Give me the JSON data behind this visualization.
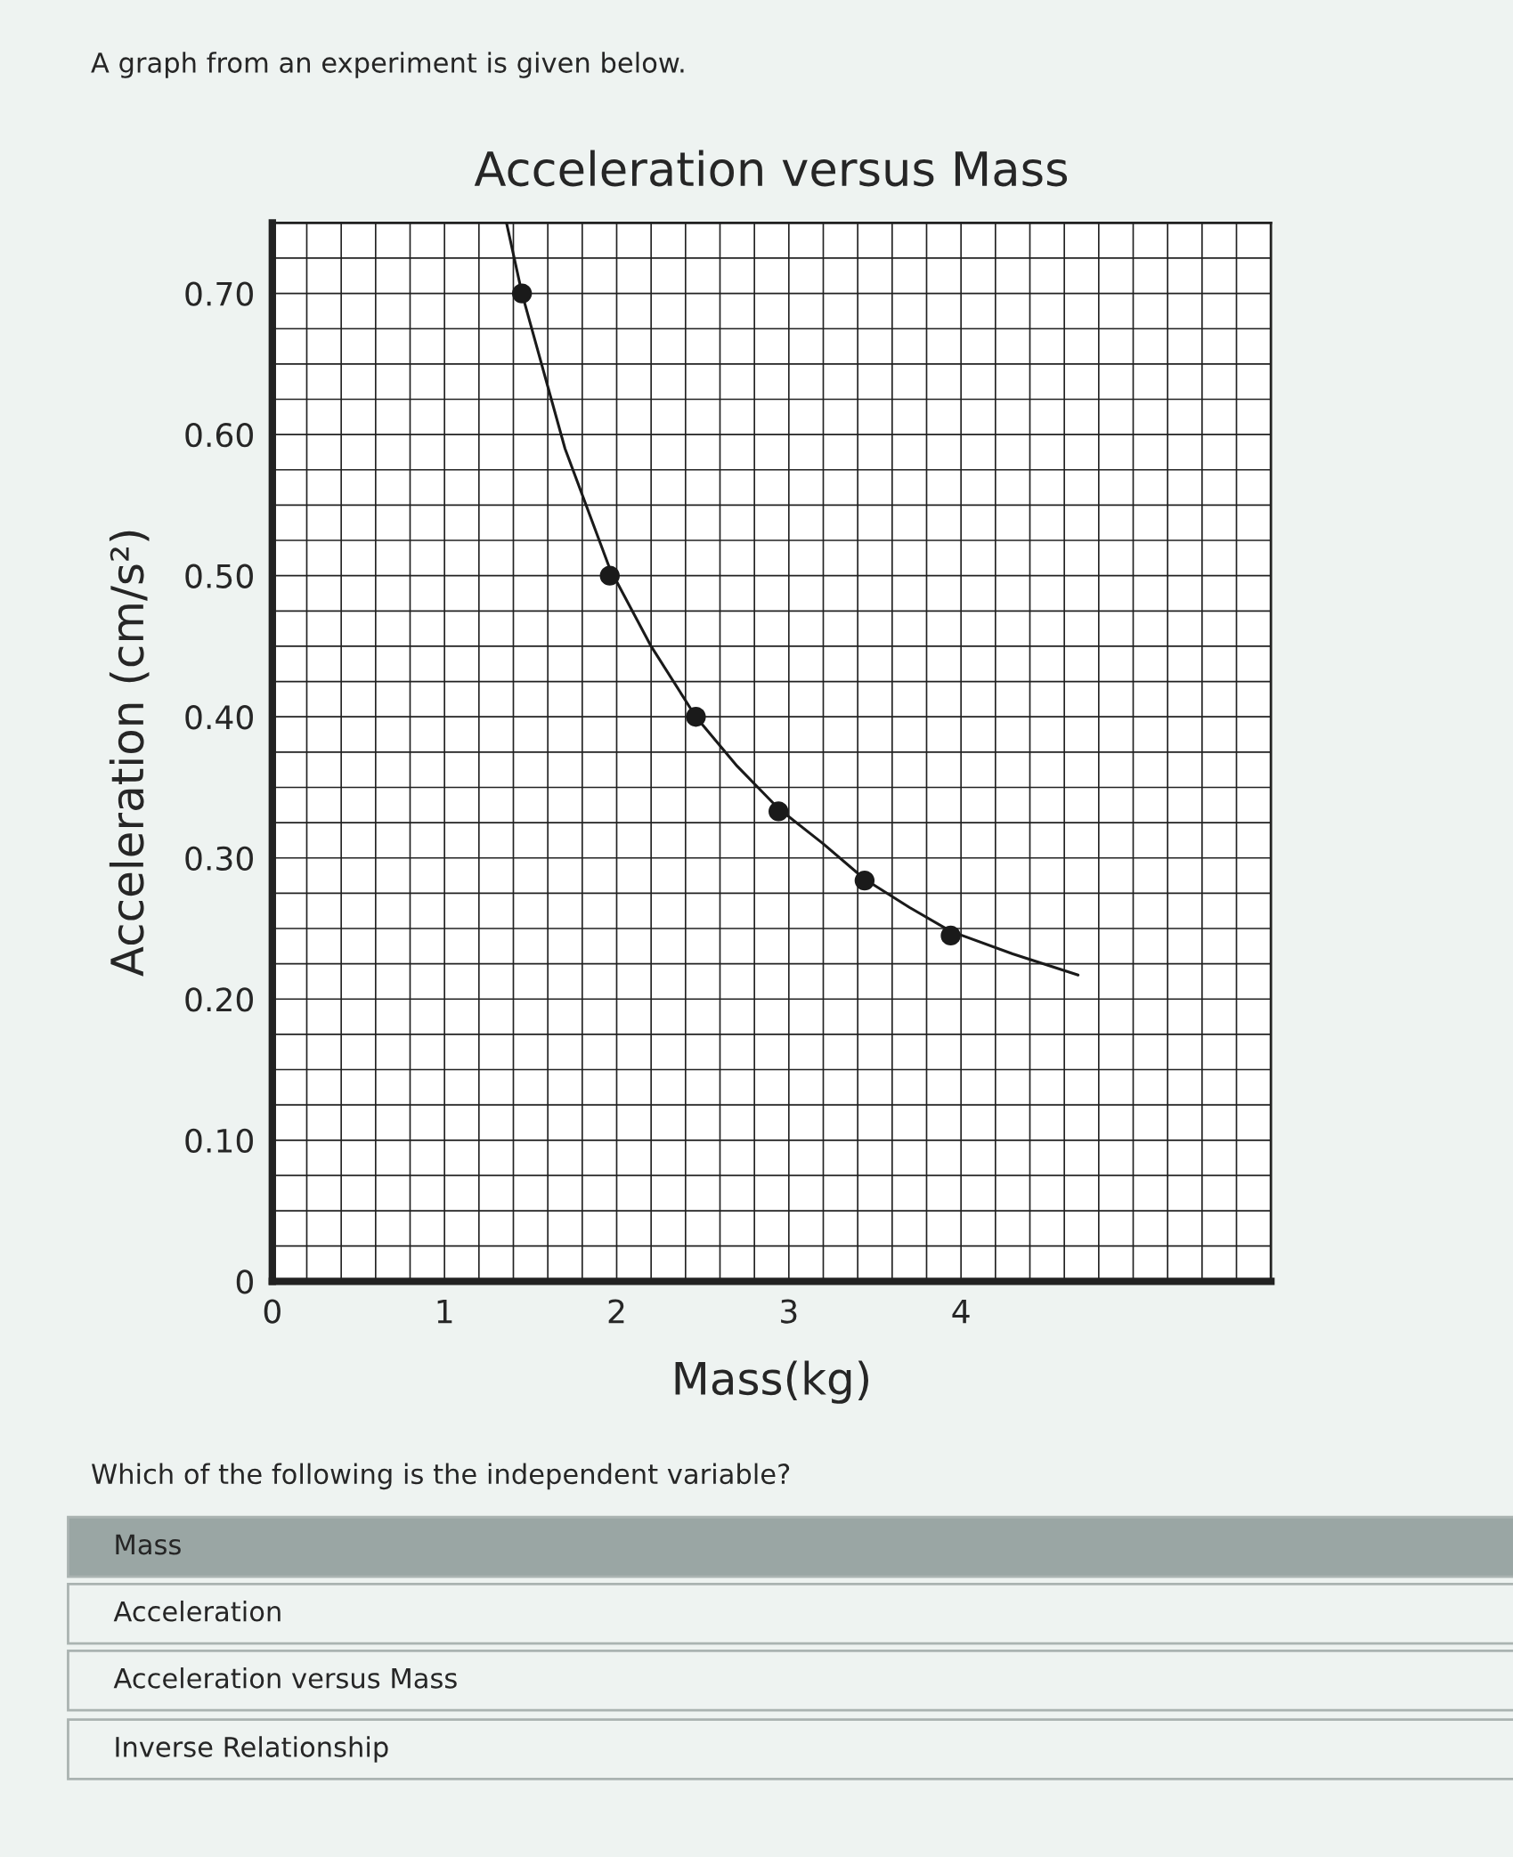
{
  "chart_data": {
    "type": "scatter",
    "title": "Acceleration versus Mass",
    "xlabel": "Mass(kg)",
    "ylabel": "Acceleration (cm/s²)",
    "annotations": [
      "A graph from an experiment is given below.",
      "Which of the following is the independent variable?",
      "Mass",
      "Acceleration",
      "Acceleration versus Mass",
      "Inverse Relationship"
    ],
    "series": [
      {
        "color": "#1a1a1a",
        "marker": "circle",
        "x": [
          1.45,
          1.96,
          2.46,
          2.94,
          3.44,
          3.94
        ],
        "values": [
          0.7,
          0.5,
          0.4,
          0.333,
          0.284,
          0.245
        ]
      },
      {
        "type": "line",
        "color": "#1a1a1a",
        "marker": "none",
        "x": [
          1.36,
          1.45,
          1.7,
          1.96,
          2.2,
          2.46,
          2.7,
          2.94,
          3.2,
          3.44,
          3.7,
          3.94,
          4.3,
          4.68
        ],
        "values": [
          0.75,
          0.7,
          0.59,
          0.505,
          0.45,
          0.4,
          0.365,
          0.335,
          0.31,
          0.285,
          0.265,
          0.248,
          0.232,
          0.217
        ]
      }
    ],
    "xlim": [
      0,
      5.8
    ],
    "ylim": [
      0,
      0.75
    ],
    "xticks": [
      0,
      {
        "value": 0.2,
        "label": null
      },
      {
        "value": 0.4,
        "label": null
      },
      {
        "value": 0.6,
        "label": null
      },
      {
        "value": 0.8,
        "label": null
      },
      1,
      {
        "value": 1.2,
        "label": null
      },
      {
        "value": 1.4,
        "label": null
      },
      {
        "value": 1.6,
        "label": null
      },
      {
        "value": 1.8,
        "label": null
      },
      2,
      {
        "value": 2.2,
        "label": null
      },
      {
        "value": 2.4,
        "label": null
      },
      {
        "value": 2.6,
        "label": null
      },
      {
        "value": 2.8,
        "label": null
      },
      3,
      {
        "value": 3.2,
        "label": null
      },
      {
        "value": 3.4,
        "label": null
      },
      {
        "value": 3.6,
        "label": null
      },
      {
        "value": 3.8,
        "label": null
      },
      4,
      {
        "value": 4.2,
        "label": null
      },
      {
        "value": 4.4,
        "label": null
      },
      {
        "value": 4.6,
        "label": null
      },
      {
        "value": 4.8,
        "label": null
      },
      {
        "value": 5.0,
        "label": null
      },
      {
        "value": 5.2,
        "label": null
      },
      {
        "value": 5.4,
        "label": null
      },
      {
        "value": 5.6,
        "label": null
      },
      {
        "value": 5.8,
        "label": null
      }
    ],
    "yticks": [
      0,
      {
        "value": 0.025,
        "label": null
      },
      {
        "value": 0.05,
        "label": null
      },
      {
        "value": 0.075,
        "label": null
      },
      {
        "value": 0.1,
        "label": "0.10"
      },
      {
        "value": 0.125,
        "label": null
      },
      {
        "value": 0.15,
        "label": null
      },
      {
        "value": 0.175,
        "label": null
      },
      {
        "value": 0.2,
        "label": "0.20"
      },
      {
        "value": 0.225,
        "label": null
      },
      {
        "value": 0.25,
        "label": null
      },
      {
        "value": 0.275,
        "label": null
      },
      {
        "value": 0.3,
        "label": "0.30"
      },
      {
        "value": 0.325,
        "label": null
      },
      {
        "value": 0.35,
        "label": null
      },
      {
        "value": 0.375,
        "label": null
      },
      {
        "value": 0.4,
        "label": "0.40"
      },
      {
        "value": 0.425,
        "label": null
      },
      {
        "value": 0.45,
        "label": null
      },
      {
        "value": 0.475,
        "label": null
      },
      {
        "value": 0.5,
        "label": "0.50"
      },
      {
        "value": 0.525,
        "label": null
      },
      {
        "value": 0.55,
        "label": null
      },
      {
        "value": 0.575,
        "label": null
      },
      {
        "value": 0.6,
        "label": "0.60"
      },
      {
        "value": 0.625,
        "label": null
      },
      {
        "value": 0.65,
        "label": null
      },
      {
        "value": 0.675,
        "label": null
      },
      {
        "value": 0.7,
        "label": "0.70"
      },
      {
        "value": 0.725,
        "label": null
      },
      {
        "value": 0.75,
        "label": null
      }
    ],
    "grid": true
  }
}
